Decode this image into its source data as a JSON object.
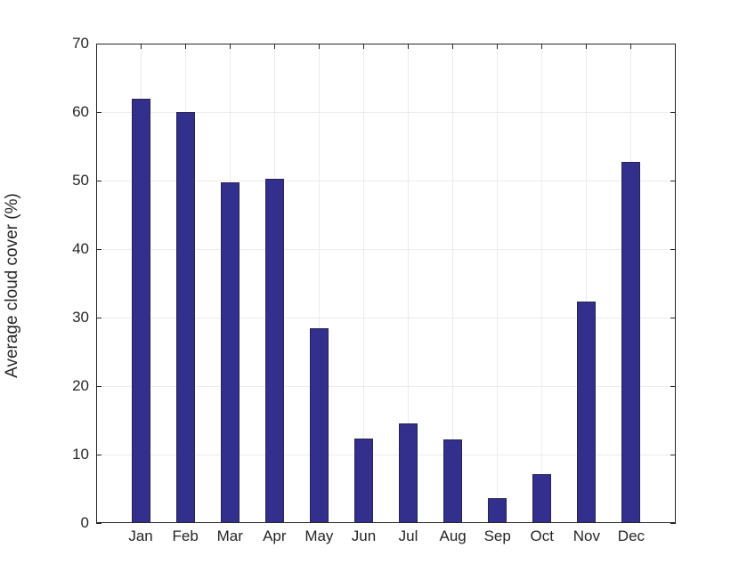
{
  "chart_data": {
    "type": "bar",
    "categories": [
      "Jan",
      "Feb",
      "Mar",
      "Apr",
      "May",
      "Jun",
      "Jul",
      "Aug",
      "Sep",
      "Oct",
      "Nov",
      "Dec"
    ],
    "values": [
      62,
      60,
      49.8,
      50.2,
      28.4,
      12.4,
      14.5,
      12.2,
      3.7,
      7.2,
      32.3,
      52.7
    ],
    "ylabel": "Average cloud cover (%)",
    "ylim": [
      0,
      70
    ],
    "yticks": [
      0,
      10,
      20,
      30,
      40,
      50,
      60,
      70
    ],
    "grid": true,
    "legend": "none",
    "colors": {
      "bar_fill": "#32308c",
      "bar_edge": "#26244f",
      "grid": "#ececec",
      "axis": "#262626",
      "tick_label": "#262626",
      "background": "#ffffff"
    }
  }
}
